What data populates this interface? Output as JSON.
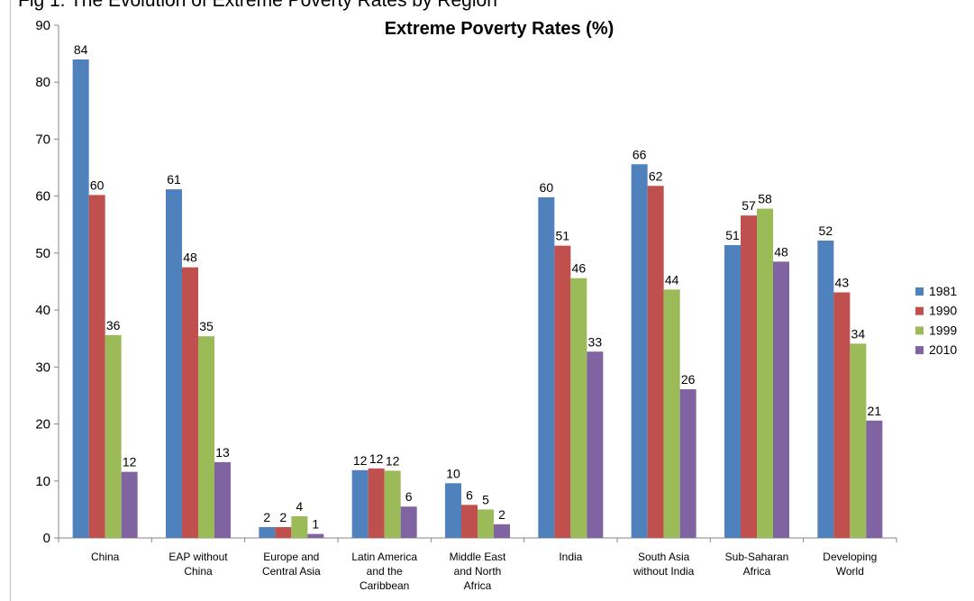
{
  "figure": {
    "caption": "Fig 1. The Evolution of Extreme Poverty Rates by Region"
  },
  "chart_data": {
    "type": "bar",
    "title": "Extreme Poverty Rates (%)",
    "xlabel": "",
    "ylabel": "",
    "ylim": [
      0,
      90
    ],
    "yticks": [
      0,
      10,
      20,
      30,
      40,
      50,
      60,
      70,
      80,
      90
    ],
    "grid": false,
    "legend_position": "right",
    "categories": [
      [
        "China"
      ],
      [
        "EAP without",
        "China"
      ],
      [
        "Europe and",
        "Central Asia"
      ],
      [
        "Latin America",
        "and the",
        "Caribbean"
      ],
      [
        "Middle East",
        "and North",
        "Africa"
      ],
      [
        "India"
      ],
      [
        "South Asia",
        "without India"
      ],
      [
        "Sub-Saharan",
        "Africa"
      ],
      [
        "Developing",
        "World"
      ]
    ],
    "series": [
      {
        "name": "1981",
        "color": "#4f81bd",
        "values": [
          84.0,
          61.2,
          1.9,
          11.9,
          9.6,
          59.8,
          65.6,
          51.4,
          52.2
        ],
        "labels": [
          "84",
          "61",
          "2",
          "12",
          "10",
          "60",
          "66",
          "51",
          "52"
        ]
      },
      {
        "name": "1990",
        "color": "#c0504d",
        "values": [
          60.2,
          47.5,
          1.9,
          12.2,
          5.8,
          51.3,
          61.8,
          56.6,
          43.1
        ],
        "labels": [
          "60",
          "48",
          "2",
          "12",
          "6",
          "51",
          "62",
          "57",
          "43"
        ]
      },
      {
        "name": "1999",
        "color": "#9bbb59",
        "values": [
          35.6,
          35.4,
          3.8,
          11.8,
          5.0,
          45.6,
          43.6,
          57.8,
          34.1
        ],
        "labels": [
          "36",
          "35",
          "4",
          "12",
          "5",
          "46",
          "44",
          "58",
          "34"
        ]
      },
      {
        "name": "2010",
        "color": "#8064a2",
        "values": [
          11.6,
          13.3,
          0.7,
          5.5,
          2.4,
          32.7,
          26.1,
          48.5,
          20.6
        ],
        "labels": [
          "12",
          "13",
          "1",
          "6",
          "2",
          "33",
          "26",
          "48",
          "21"
        ]
      }
    ]
  }
}
